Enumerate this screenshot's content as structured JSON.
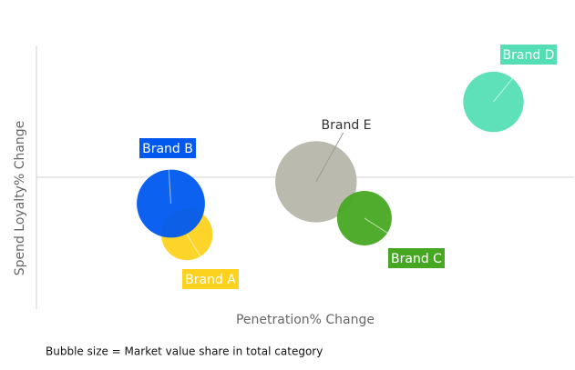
{
  "chart_data": {
    "type": "scatter",
    "x_label": "Penetration% Change",
    "y_label": "Spend Loyalty% Change",
    "note": "Bubble size = Market value share in total category",
    "xlim": [
      0,
      100
    ],
    "ylim": [
      -50,
      50
    ],
    "series": [
      {
        "name": "Brand A",
        "color": "#fdd21e",
        "x": [
          28
        ],
        "values": [
          -21.7
        ],
        "sizes": [
          8
        ]
      },
      {
        "name": "Brand B",
        "color": "#0058ef",
        "x": [
          25
        ],
        "values": [
          -10
        ],
        "sizes": [
          14
        ]
      },
      {
        "name": "Brand E",
        "color": "#b7b6aa",
        "x": [
          52
        ],
        "values": [
          -1.7
        ],
        "sizes": [
          20
        ]
      },
      {
        "name": "Brand C",
        "color": "#46a822",
        "x": [
          61
        ],
        "values": [
          -15.5
        ],
        "sizes": [
          9
        ]
      },
      {
        "name": "Brand D",
        "color": "#55deb5",
        "x": [
          85
        ],
        "values": [
          28.6
        ],
        "sizes": [
          11
        ]
      }
    ]
  }
}
